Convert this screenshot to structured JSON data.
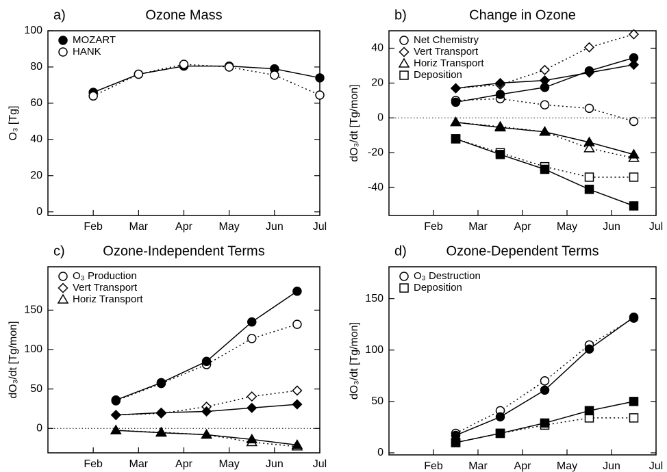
{
  "chart_data": [
    {
      "type": "line",
      "panel_label": "a)",
      "title": "Ozone Mass",
      "ylabel": "O₃ [Tg]",
      "color": "#000000",
      "x": [
        1,
        2,
        3,
        4,
        5,
        6
      ],
      "xlim": [
        0,
        6
      ],
      "xticks": [
        {
          "value": 1,
          "label": "Feb"
        },
        {
          "value": 2,
          "label": "Mar"
        },
        {
          "value": 3,
          "label": "Apr"
        },
        {
          "value": 4,
          "label": "May"
        },
        {
          "value": 5,
          "label": "Jun"
        },
        {
          "value": 6,
          "label": "Jul"
        }
      ],
      "ylim": [
        -2,
        100
      ],
      "yticks": [
        0,
        20,
        40,
        60,
        80,
        100
      ],
      "zero_line": false,
      "series": [
        {
          "name": "MOZART",
          "marker": "circle",
          "filled": true,
          "style": "solid",
          "values": [
            66,
            76,
            80.5,
            80.5,
            79,
            74
          ]
        },
        {
          "name": "HANK",
          "marker": "circle",
          "filled": false,
          "style": "dotted",
          "values": [
            64,
            76,
            81.5,
            80,
            75.5,
            64.5
          ]
        }
      ]
    },
    {
      "type": "line",
      "panel_label": "b)",
      "title": "Change in Ozone",
      "ylabel": "dO₃/dt [Tg/mon]",
      "color": "#000000",
      "x": [
        1.5,
        2.5,
        3.5,
        4.5,
        5.5
      ],
      "xlim": [
        0,
        6
      ],
      "xticks": [
        {
          "value": 1,
          "label": "Feb"
        },
        {
          "value": 2,
          "label": "Mar"
        },
        {
          "value": 3,
          "label": "Apr"
        },
        {
          "value": 4,
          "label": "May"
        },
        {
          "value": 5,
          "label": "Jun"
        },
        {
          "value": 6,
          "label": "Jul"
        }
      ],
      "ylim": [
        -56,
        50
      ],
      "yticks": [
        -40,
        -20,
        0,
        20,
        40
      ],
      "zero_line": true,
      "series": [
        {
          "name": "Net Chemistry",
          "marker": "circle",
          "values": [
            9,
            13.5,
            17.5,
            27,
            34.5
          ],
          "values_open": [
            10,
            11,
            7.5,
            5.5,
            -2
          ]
        },
        {
          "name": "Vert Transport",
          "marker": "diamond",
          "values": [
            17,
            20,
            21.5,
            26,
            30.5
          ],
          "values_open": [
            17,
            19,
            27.5,
            40.5,
            48
          ]
        },
        {
          "name": "Horiz Transport",
          "marker": "triangle",
          "values": [
            -2.5,
            -5.5,
            -8,
            -14,
            -21
          ],
          "values_open": [
            -2.5,
            -5,
            -8,
            -17.5,
            -23
          ]
        },
        {
          "name": "Deposition",
          "marker": "square",
          "values": [
            -12,
            -21,
            -29.5,
            -41,
            -50.5
          ],
          "values_open": [
            -12,
            -20,
            -28,
            -34,
            -34
          ]
        }
      ]
    },
    {
      "type": "line",
      "panel_label": "c)",
      "title": "Ozone-Independent Terms",
      "ylabel": "dO₃/dt [Tg/mon]",
      "color": "#000000",
      "x": [
        1.5,
        2.5,
        3.5,
        4.5,
        5.5
      ],
      "xlim": [
        0,
        6
      ],
      "xticks": [
        {
          "value": 1,
          "label": "Feb"
        },
        {
          "value": 2,
          "label": "Mar"
        },
        {
          "value": 3,
          "label": "Apr"
        },
        {
          "value": 4,
          "label": "May"
        },
        {
          "value": 5,
          "label": "Jun"
        },
        {
          "value": 6,
          "label": "Jul"
        }
      ],
      "ylim": [
        -31,
        205
      ],
      "yticks": [
        0,
        50,
        100,
        150
      ],
      "zero_line": true,
      "series": [
        {
          "name": "O₃ Production",
          "marker": "circle",
          "values": [
            36,
            58,
            85,
            135,
            174
          ],
          "values_open": [
            35,
            57,
            81,
            114,
            132
          ]
        },
        {
          "name": "Vert Transport",
          "marker": "diamond",
          "values": [
            17,
            20,
            21.5,
            26,
            30.5
          ],
          "values_open": [
            17,
            19,
            27.5,
            40.5,
            48
          ]
        },
        {
          "name": "Horiz Transport",
          "marker": "triangle",
          "values": [
            -2.5,
            -5.5,
            -8,
            -14,
            -21
          ],
          "values_open": [
            -2.5,
            -5,
            -8,
            -17.5,
            -23
          ]
        }
      ]
    },
    {
      "type": "line",
      "panel_label": "d)",
      "title": "Ozone-Dependent Terms",
      "ylabel": "dO₃/dt [Tg/mon]",
      "color": "#000000",
      "x": [
        1.5,
        2.5,
        3.5,
        4.5,
        5.5
      ],
      "xlim": [
        0,
        6
      ],
      "xticks": [
        {
          "value": 1,
          "label": "Feb"
        },
        {
          "value": 2,
          "label": "Mar"
        },
        {
          "value": 3,
          "label": "Apr"
        },
        {
          "value": 4,
          "label": "May"
        },
        {
          "value": 5,
          "label": "Jun"
        },
        {
          "value": 6,
          "label": "Jul"
        }
      ],
      "ylim": [
        -2,
        181
      ],
      "yticks": [
        0,
        50,
        100,
        150
      ],
      "zero_line": false,
      "series": [
        {
          "name": "O₃ Destruction",
          "marker": "circle",
          "values": [
            17,
            35,
            61,
            101,
            132
          ],
          "values_open": [
            19,
            41,
            70,
            105,
            131
          ]
        },
        {
          "name": "Deposition",
          "marker": "square",
          "values": [
            10,
            19,
            29,
            41,
            50
          ],
          "values_open": [
            10,
            19,
            27,
            34,
            34
          ]
        }
      ]
    }
  ]
}
